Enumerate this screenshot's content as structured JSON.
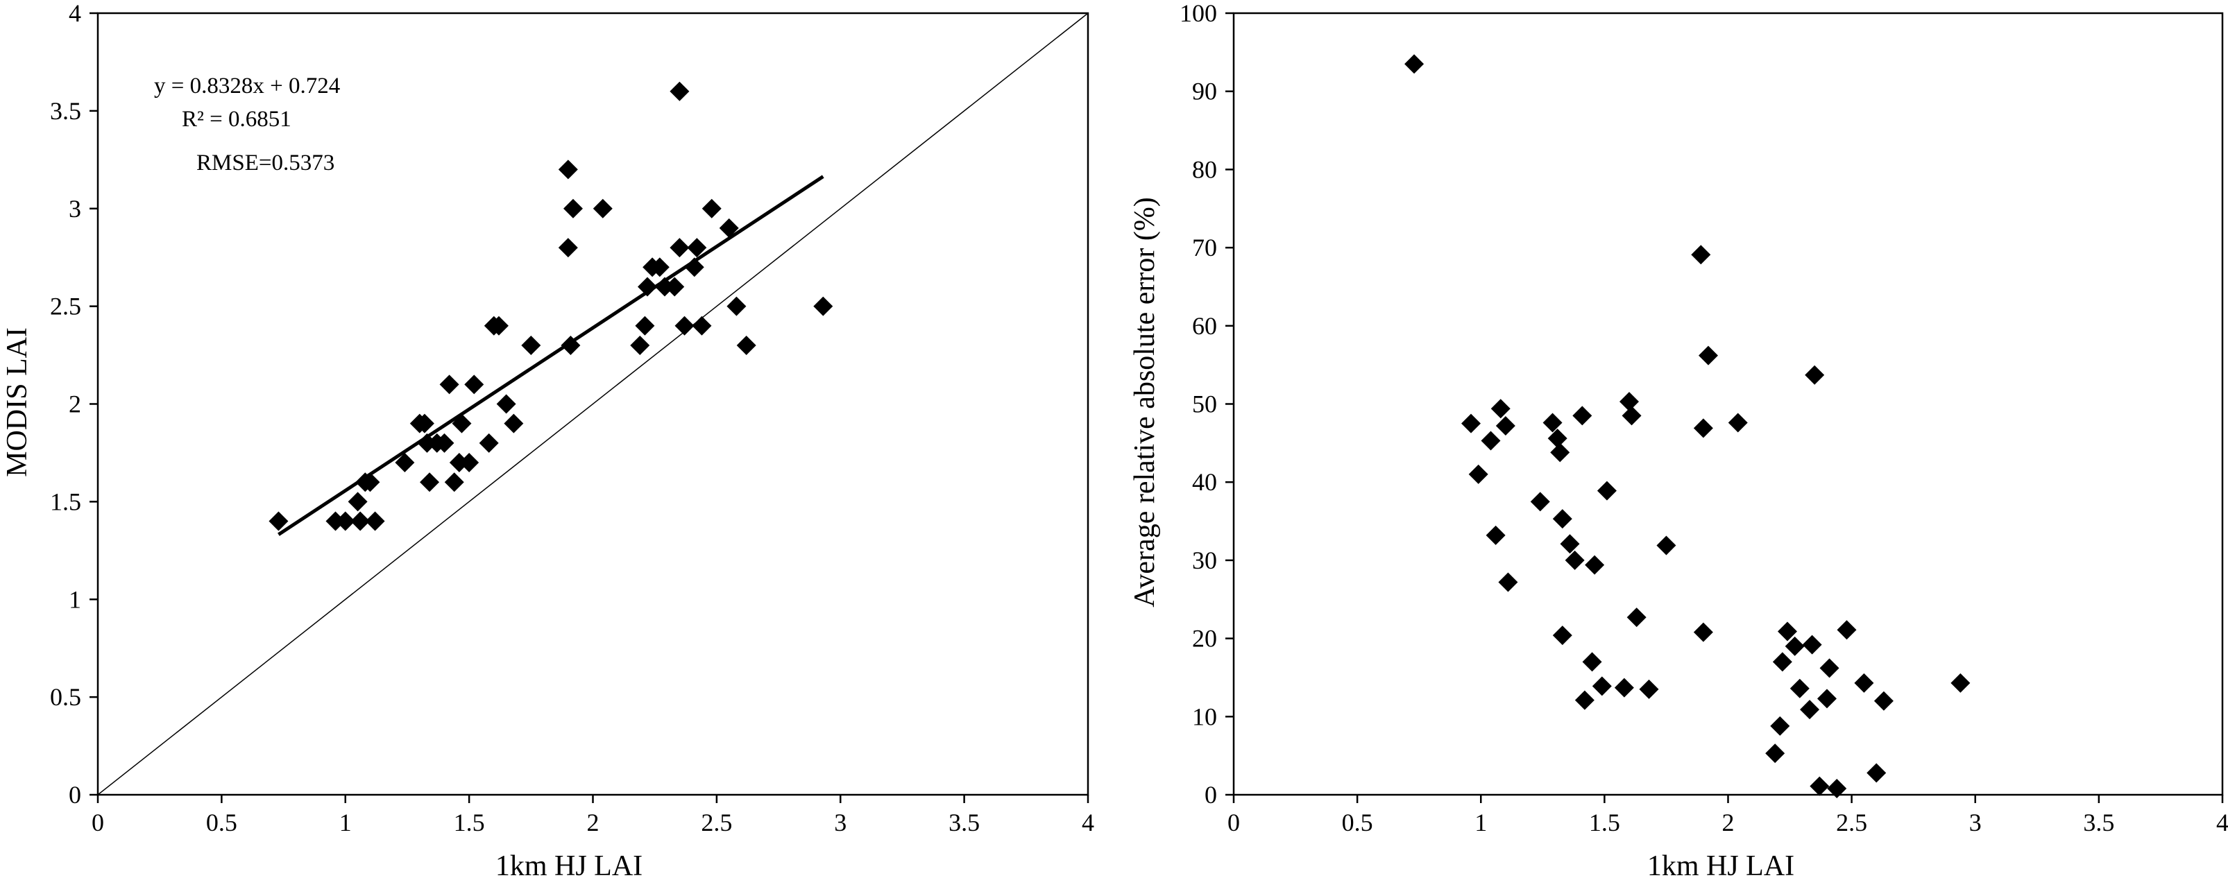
{
  "chart_data": [
    {
      "type": "scatter",
      "title": "",
      "xlabel": "1km HJ LAI",
      "ylabel": "MODIS  LAI",
      "xlim": [
        0,
        4
      ],
      "ylim": [
        0,
        4
      ],
      "x_ticks": [
        "0",
        "0.5",
        "1",
        "1.5",
        "2",
        "2.5",
        "3",
        "3.5",
        "4"
      ],
      "y_ticks": [
        "0",
        "0.5",
        "1",
        "1.5",
        "2",
        "2.5",
        "3",
        "3.5",
        "4"
      ],
      "grid": false,
      "legend": "none",
      "marker": "diamond",
      "marker_color": "#000000",
      "annotations": [
        "y = 0.8328x + 0.724",
        "R² = 0.6851",
        "RMSE=0.5373"
      ],
      "trendline": {
        "slope": 0.8328,
        "intercept": 0.724,
        "x_range": [
          0.73,
          2.93
        ]
      },
      "reference_line": {
        "type": "1:1"
      },
      "points": [
        [
          0.73,
          1.4
        ],
        [
          0.96,
          1.4
        ],
        [
          1.0,
          1.4
        ],
        [
          1.05,
          1.5
        ],
        [
          1.06,
          1.4
        ],
        [
          1.08,
          1.6
        ],
        [
          1.1,
          1.6
        ],
        [
          1.12,
          1.4
        ],
        [
          1.24,
          1.7
        ],
        [
          1.3,
          1.9
        ],
        [
          1.32,
          1.9
        ],
        [
          1.33,
          1.8
        ],
        [
          1.34,
          1.6
        ],
        [
          1.37,
          1.8
        ],
        [
          1.4,
          1.8
        ],
        [
          1.42,
          2.1
        ],
        [
          1.44,
          1.6
        ],
        [
          1.46,
          1.7
        ],
        [
          1.47,
          1.9
        ],
        [
          1.5,
          1.7
        ],
        [
          1.52,
          2.1
        ],
        [
          1.58,
          1.8
        ],
        [
          1.6,
          2.4
        ],
        [
          1.62,
          2.4
        ],
        [
          1.65,
          2.0
        ],
        [
          1.68,
          1.9
        ],
        [
          1.75,
          2.3
        ],
        [
          1.9,
          2.8
        ],
        [
          1.9,
          3.2
        ],
        [
          1.91,
          2.3
        ],
        [
          1.92,
          3.0
        ],
        [
          2.04,
          3.0
        ],
        [
          2.19,
          2.3
        ],
        [
          2.21,
          2.4
        ],
        [
          2.22,
          2.6
        ],
        [
          2.24,
          2.7
        ],
        [
          2.27,
          2.7
        ],
        [
          2.29,
          2.6
        ],
        [
          2.33,
          2.6
        ],
        [
          2.35,
          2.8
        ],
        [
          2.35,
          3.6
        ],
        [
          2.37,
          2.4
        ],
        [
          2.41,
          2.7
        ],
        [
          2.42,
          2.8
        ],
        [
          2.44,
          2.4
        ],
        [
          2.48,
          3.0
        ],
        [
          2.55,
          2.9
        ],
        [
          2.58,
          2.5
        ],
        [
          2.62,
          2.3
        ],
        [
          2.93,
          2.5
        ]
      ]
    },
    {
      "type": "scatter",
      "title": "",
      "xlabel": "1km HJ LAI",
      "ylabel": "Average relative absolute error (%)",
      "xlim": [
        0,
        4
      ],
      "ylim": [
        0,
        100
      ],
      "x_ticks": [
        "0",
        "0.5",
        "1",
        "1.5",
        "2",
        "2.5",
        "3",
        "3.5",
        "4"
      ],
      "y_ticks": [
        "0",
        "10",
        "20",
        "30",
        "40",
        "50",
        "60",
        "70",
        "80",
        "90",
        "100"
      ],
      "grid": false,
      "legend": "none",
      "marker": "diamond",
      "marker_color": "#000000",
      "points": [
        [
          0.73,
          93.5
        ],
        [
          0.96,
          47.5
        ],
        [
          0.99,
          41
        ],
        [
          1.04,
          45.3
        ],
        [
          1.06,
          33.2
        ],
        [
          1.08,
          49.4
        ],
        [
          1.1,
          47.2
        ],
        [
          1.11,
          27.2
        ],
        [
          1.24,
          37.5
        ],
        [
          1.29,
          47.6
        ],
        [
          1.31,
          45.6
        ],
        [
          1.32,
          43.8
        ],
        [
          1.33,
          35.3
        ],
        [
          1.33,
          20.4
        ],
        [
          1.36,
          32.1
        ],
        [
          1.38,
          30.0
        ],
        [
          1.41,
          48.5
        ],
        [
          1.42,
          12.1
        ],
        [
          1.45,
          17.0
        ],
        [
          1.46,
          29.4
        ],
        [
          1.49,
          13.9
        ],
        [
          1.51,
          38.9
        ],
        [
          1.58,
          13.7
        ],
        [
          1.6,
          50.3
        ],
        [
          1.61,
          48.5
        ],
        [
          1.63,
          22.7
        ],
        [
          1.68,
          13.5
        ],
        [
          1.75,
          31.9
        ],
        [
          1.89,
          69.1
        ],
        [
          1.9,
          46.9
        ],
        [
          1.9,
          20.8
        ],
        [
          1.92,
          56.2
        ],
        [
          2.04,
          47.6
        ],
        [
          2.19,
          5.3
        ],
        [
          2.21,
          8.8
        ],
        [
          2.22,
          17.0
        ],
        [
          2.24,
          20.9
        ],
        [
          2.27,
          19.0
        ],
        [
          2.29,
          13.6
        ],
        [
          2.33,
          10.9
        ],
        [
          2.34,
          19.2
        ],
        [
          2.35,
          53.7
        ],
        [
          2.37,
          1.1
        ],
        [
          2.4,
          12.3
        ],
        [
          2.41,
          16.2
        ],
        [
          2.44,
          0.8
        ],
        [
          2.48,
          21.1
        ],
        [
          2.55,
          14.3
        ],
        [
          2.6,
          2.8
        ],
        [
          2.63,
          12.0
        ],
        [
          2.94,
          14.3
        ]
      ]
    }
  ]
}
